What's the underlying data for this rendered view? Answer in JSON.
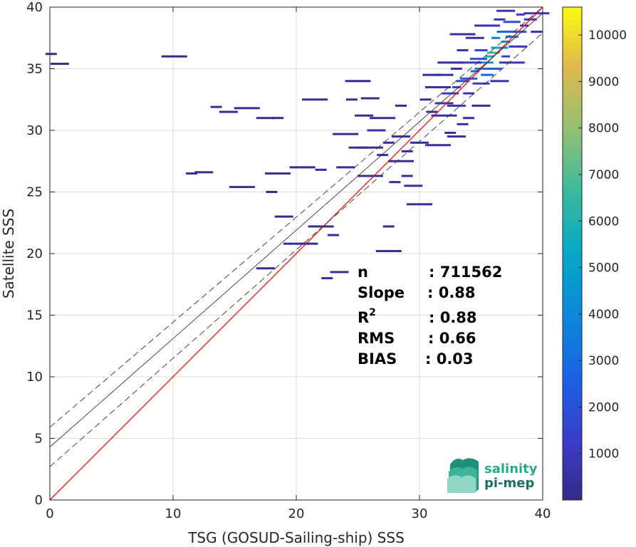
{
  "chart_data": {
    "type": "heatmap",
    "subtype": "density-scatter",
    "title": "",
    "xlabel": "TSG (GOSUD-Sailing-ship) SSS",
    "ylabel": "Satellite SSS",
    "xlim": [
      0,
      40
    ],
    "ylim": [
      0,
      40
    ],
    "xticks": [
      0,
      10,
      20,
      30,
      40
    ],
    "yticks": [
      0,
      5,
      10,
      15,
      20,
      25,
      30,
      35,
      40
    ],
    "grid": true,
    "colorbar": {
      "colormap": "parula",
      "range": [
        0,
        10600
      ],
      "ticks": [
        1000,
        2000,
        3000,
        4000,
        5000,
        6000,
        7000,
        8000,
        9000,
        10000
      ]
    },
    "lines": [
      {
        "role": "1:1 line",
        "color": "#ff0000",
        "style": "solid",
        "intercept": 0,
        "slope": 1
      },
      {
        "role": "regression fit",
        "color": "#333333",
        "style": "solid",
        "intercept": 4.3,
        "slope": 0.88
      },
      {
        "role": "fit + rms",
        "color": "#333333",
        "style": "dashed",
        "intercept": 5.9,
        "slope": 0.88
      },
      {
        "role": "fit - rms",
        "color": "#333333",
        "style": "dashed",
        "intercept": 2.7,
        "slope": 0.88
      }
    ],
    "stats": [
      {
        "label": "n",
        "value": ": 711562"
      },
      {
        "label": "Slope",
        "value": ": 0.88"
      },
      {
        "label": "R",
        "sup": "2",
        "value": ": 0.88"
      },
      {
        "label": "RMS",
        "value": ": 0.66"
      },
      {
        "label": "BIAS",
        "value": ": 0.03"
      }
    ],
    "density_points": [
      {
        "x": 0.1,
        "y": 36.2,
        "c": 80
      },
      {
        "x": 0.8,
        "y": 35.4,
        "c": 80
      },
      {
        "x": 10.1,
        "y": 36.0,
        "c": 80
      },
      {
        "x": 11.5,
        "y": 26.5,
        "c": 200
      },
      {
        "x": 12.5,
        "y": 26.6,
        "c": 300
      },
      {
        "x": 15.6,
        "y": 25.4,
        "c": 400
      },
      {
        "x": 13.5,
        "y": 31.9,
        "c": 250
      },
      {
        "x": 14.5,
        "y": 31.5,
        "c": 300
      },
      {
        "x": 16.0,
        "y": 31.8,
        "c": 250
      },
      {
        "x": 18.5,
        "y": 31.0,
        "c": 250
      },
      {
        "x": 17.5,
        "y": 31.0,
        "c": 200
      },
      {
        "x": 21.5,
        "y": 32.5,
        "c": 200
      },
      {
        "x": 24.5,
        "y": 32.5,
        "c": 200
      },
      {
        "x": 26.0,
        "y": 32.6,
        "c": 250
      },
      {
        "x": 25.0,
        "y": 34.0,
        "c": 150
      },
      {
        "x": 27.0,
        "y": 28.0,
        "c": 300
      },
      {
        "x": 24.0,
        "y": 27.0,
        "c": 250
      },
      {
        "x": 20.5,
        "y": 27.0,
        "c": 200
      },
      {
        "x": 22.0,
        "y": 26.8,
        "c": 300
      },
      {
        "x": 25.0,
        "y": 28.6,
        "c": 400
      },
      {
        "x": 26.0,
        "y": 28.6,
        "c": 400
      },
      {
        "x": 27.5,
        "y": 29.0,
        "c": 400
      },
      {
        "x": 28.5,
        "y": 29.5,
        "c": 300
      },
      {
        "x": 28.5,
        "y": 27.5,
        "c": 300
      },
      {
        "x": 29.0,
        "y": 26.3,
        "c": 300
      },
      {
        "x": 29.5,
        "y": 25.5,
        "c": 250
      },
      {
        "x": 30.0,
        "y": 24.0,
        "c": 250
      },
      {
        "x": 29.0,
        "y": 28.3,
        "c": 400
      },
      {
        "x": 30.0,
        "y": 29.0,
        "c": 400
      },
      {
        "x": 31.5,
        "y": 28.8,
        "c": 400
      },
      {
        "x": 32.5,
        "y": 29.8,
        "c": 400
      },
      {
        "x": 33.0,
        "y": 29.5,
        "c": 300
      },
      {
        "x": 22.0,
        "y": 22.2,
        "c": 200
      },
      {
        "x": 23.0,
        "y": 21.5,
        "c": 250
      },
      {
        "x": 21.0,
        "y": 20.8,
        "c": 250
      },
      {
        "x": 20.0,
        "y": 20.8,
        "c": 200
      },
      {
        "x": 22.5,
        "y": 18.0,
        "c": 200
      },
      {
        "x": 23.5,
        "y": 18.5,
        "c": 250
      },
      {
        "x": 27.5,
        "y": 20.2,
        "c": 200
      },
      {
        "x": 27.5,
        "y": 22.2,
        "c": 200
      },
      {
        "x": 19.0,
        "y": 23.0,
        "c": 200
      },
      {
        "x": 18.5,
        "y": 26.5,
        "c": 200
      },
      {
        "x": 18.0,
        "y": 25.0,
        "c": 150
      },
      {
        "x": 17.5,
        "y": 18.8,
        "c": 150
      },
      {
        "x": 26.0,
        "y": 26.3,
        "c": 300
      },
      {
        "x": 28.0,
        "y": 25.8,
        "c": 300
      },
      {
        "x": 25.5,
        "y": 31.2,
        "c": 300
      },
      {
        "x": 27.0,
        "y": 31.0,
        "c": 400
      },
      {
        "x": 28.5,
        "y": 32.0,
        "c": 300
      },
      {
        "x": 26.5,
        "y": 30.0,
        "c": 400
      },
      {
        "x": 24.0,
        "y": 29.7,
        "c": 300
      },
      {
        "x": 31.0,
        "y": 31.5,
        "c": 400
      },
      {
        "x": 32.0,
        "y": 32.2,
        "c": 800
      },
      {
        "x": 32.5,
        "y": 33.0,
        "c": 1200
      },
      {
        "x": 33.0,
        "y": 33.5,
        "c": 1500
      },
      {
        "x": 33.5,
        "y": 34.0,
        "c": 1800
      },
      {
        "x": 34.0,
        "y": 34.2,
        "c": 2200
      },
      {
        "x": 34.5,
        "y": 34.8,
        "c": 2800
      },
      {
        "x": 35.0,
        "y": 35.0,
        "c": 3800
      },
      {
        "x": 35.3,
        "y": 35.5,
        "c": 4500
      },
      {
        "x": 35.7,
        "y": 36.0,
        "c": 5500
      },
      {
        "x": 36.0,
        "y": 36.3,
        "c": 6500
      },
      {
        "x": 36.5,
        "y": 36.7,
        "c": 5000
      },
      {
        "x": 37.0,
        "y": 37.2,
        "c": 4000
      },
      {
        "x": 37.5,
        "y": 37.6,
        "c": 3000
      },
      {
        "x": 38.0,
        "y": 38.0,
        "c": 2200
      },
      {
        "x": 38.5,
        "y": 38.5,
        "c": 1600
      },
      {
        "x": 39.0,
        "y": 39.0,
        "c": 1200
      },
      {
        "x": 39.5,
        "y": 39.5,
        "c": 900
      },
      {
        "x": 36.2,
        "y": 37.5,
        "c": 3500
      },
      {
        "x": 36.8,
        "y": 38.0,
        "c": 2500
      },
      {
        "x": 37.5,
        "y": 38.8,
        "c": 1800
      },
      {
        "x": 38.2,
        "y": 39.4,
        "c": 1200
      },
      {
        "x": 35.0,
        "y": 36.5,
        "c": 1500
      },
      {
        "x": 34.0,
        "y": 35.5,
        "c": 900
      },
      {
        "x": 33.0,
        "y": 35.0,
        "c": 700
      },
      {
        "x": 32.0,
        "y": 34.5,
        "c": 500
      },
      {
        "x": 36.0,
        "y": 35.0,
        "c": 2500
      },
      {
        "x": 37.0,
        "y": 36.0,
        "c": 1500
      },
      {
        "x": 38.0,
        "y": 36.8,
        "c": 900
      },
      {
        "x": 35.0,
        "y": 33.8,
        "c": 1200
      },
      {
        "x": 34.0,
        "y": 33.0,
        "c": 800
      },
      {
        "x": 33.0,
        "y": 32.0,
        "c": 700
      },
      {
        "x": 32.0,
        "y": 31.2,
        "c": 500
      },
      {
        "x": 34.0,
        "y": 31.0,
        "c": 400
      },
      {
        "x": 35.0,
        "y": 32.0,
        "c": 400
      },
      {
        "x": 31.5,
        "y": 33.5,
        "c": 400
      },
      {
        "x": 30.5,
        "y": 32.5,
        "c": 300
      },
      {
        "x": 31.0,
        "y": 34.5,
        "c": 300
      },
      {
        "x": 32.5,
        "y": 35.5,
        "c": 400
      },
      {
        "x": 33.5,
        "y": 36.5,
        "c": 500
      },
      {
        "x": 34.5,
        "y": 37.5,
        "c": 600
      },
      {
        "x": 35.5,
        "y": 38.5,
        "c": 700
      },
      {
        "x": 36.5,
        "y": 39.0,
        "c": 800
      },
      {
        "x": 37.0,
        "y": 39.7,
        "c": 700
      },
      {
        "x": 33.5,
        "y": 37.8,
        "c": 400
      },
      {
        "x": 39.5,
        "y": 38.0,
        "c": 600
      },
      {
        "x": 36.5,
        "y": 34.0,
        "c": 700
      },
      {
        "x": 37.5,
        "y": 35.5,
        "c": 900
      },
      {
        "x": 33.5,
        "y": 30.5,
        "c": 300
      },
      {
        "x": 35.5,
        "y": 34.5,
        "c": 3000
      },
      {
        "x": 34.8,
        "y": 35.8,
        "c": 2000
      }
    ]
  },
  "logo": {
    "line1": "salinity",
    "line2": "pi-mep",
    "line1_color": "#2aa88a",
    "line2_color": "#1c6e64"
  },
  "colors": {
    "one_to_one": "#ff0000",
    "fit": "#333333",
    "grid": "#dcdcdc",
    "axis": "#262626"
  }
}
